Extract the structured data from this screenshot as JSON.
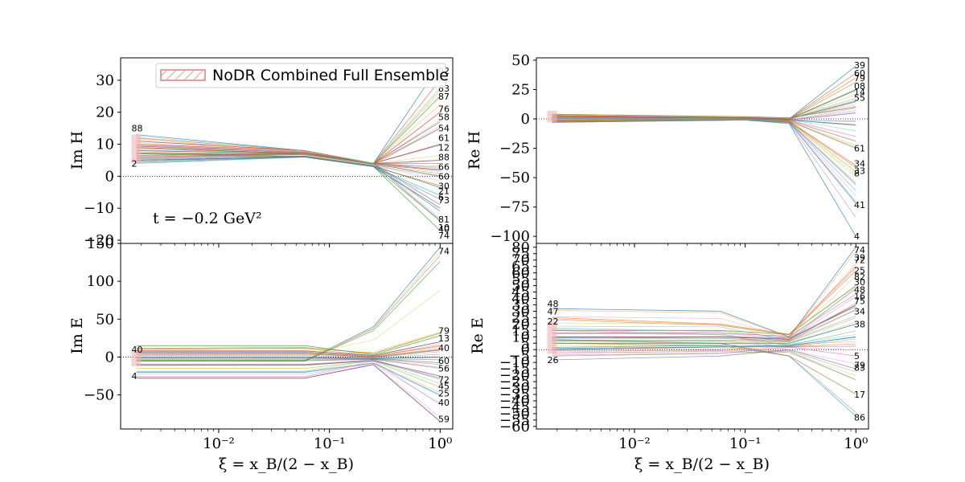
{
  "figure": {
    "legend_label": "NoDR Combined Full Ensemble",
    "annotation": "t = −0.2 GeV²",
    "xlabel": "ξ = x_B/(2 − x_B)",
    "colors": {
      "axes": "#000000",
      "legend_edge": "#e39c9c",
      "band": "#f0b3b3",
      "palette": [
        "#1f77b4",
        "#ff7f0e",
        "#2ca02c",
        "#d62728",
        "#9467bd",
        "#8c564b",
        "#e377c2",
        "#7f7f7f",
        "#bcbd22",
        "#17becf"
      ]
    }
  },
  "chart_data": [
    {
      "type": "line",
      "panel": "top-left",
      "ylabel": "Im H",
      "xscale": "log",
      "xlim": [
        0.0013,
        1.3
      ],
      "ylim": [
        -21,
        37
      ],
      "yticks": [
        -20,
        -10,
        0,
        10,
        20,
        30
      ],
      "xticks": [
        0.01,
        0.1,
        1
      ],
      "xticklabels": [
        "10⁻²",
        "10⁻¹",
        "10⁰"
      ],
      "show_xticklabels": false,
      "x": [
        0.0018,
        0.06,
        0.25,
        1.0
      ],
      "n_replicas": 100,
      "band": {
        "x0": 0.0018,
        "low": 4,
        "high": 13
      },
      "baseline": 0,
      "series": [
        {
          "values": [
            13,
            8,
            4,
            35
          ]
        },
        {
          "values": [
            12,
            8,
            4,
            30
          ]
        },
        {
          "values": [
            11,
            8,
            4,
            25
          ]
        },
        {
          "values": [
            10,
            8,
            4,
            20
          ]
        },
        {
          "values": [
            9,
            7,
            4,
            15
          ]
        },
        {
          "values": [
            8,
            7,
            4,
            10
          ]
        },
        {
          "values": [
            7,
            7,
            4,
            5
          ]
        },
        {
          "values": [
            6,
            7,
            4,
            0
          ]
        },
        {
          "values": [
            5,
            6,
            3,
            -3
          ]
        },
        {
          "values": [
            4,
            6,
            3,
            -6
          ]
        },
        {
          "values": [
            5,
            6,
            3,
            -10
          ]
        },
        {
          "values": [
            6,
            7,
            4,
            -14
          ]
        },
        {
          "values": [
            7,
            6,
            3,
            -17
          ]
        },
        {
          "values": [
            9,
            7,
            4,
            2
          ]
        },
        {
          "values": [
            11,
            8,
            4,
            4
          ]
        }
      ],
      "end_labels": [
        {
          "id": "92",
          "y": 33
        },
        {
          "id": "83",
          "y": 27.5
        },
        {
          "id": "87",
          "y": 25
        },
        {
          "id": "76",
          "y": 21
        },
        {
          "id": "58",
          "y": 18.5
        },
        {
          "id": "54",
          "y": 15
        },
        {
          "id": "61",
          "y": 12
        },
        {
          "id": "12",
          "y": 9
        },
        {
          "id": "88",
          "y": 6
        },
        {
          "id": "66",
          "y": 3
        },
        {
          "id": "60",
          "y": 0
        },
        {
          "id": "30",
          "y": -3
        },
        {
          "id": "21",
          "y": -4.5
        },
        {
          "id": "6",
          "y": -6.5
        },
        {
          "id": "73",
          "y": -7.5
        },
        {
          "id": "81",
          "y": -13.5
        },
        {
          "id": "10",
          "y": -16
        },
        {
          "id": "40",
          "y": -16.5
        },
        {
          "id": "74",
          "y": -18.5
        }
      ],
      "start_labels": [
        {
          "id": "88",
          "y": 15
        },
        {
          "id": "2",
          "y": 4
        }
      ]
    },
    {
      "type": "line",
      "panel": "top-right",
      "ylabel": "Re H",
      "xscale": "log",
      "xlim": [
        0.0013,
        1.3
      ],
      "ylim": [
        -106,
        52
      ],
      "yticks": [
        -100,
        -75,
        -50,
        -25,
        0,
        25,
        50
      ],
      "xticks": [
        0.01,
        0.1,
        1
      ],
      "xticklabels": [
        "10⁻²",
        "10⁻¹",
        "10⁰"
      ],
      "show_xticklabels": false,
      "x": [
        0.0018,
        0.1,
        0.25,
        1.0
      ],
      "n_replicas": 100,
      "band": {
        "x0": 0.0018,
        "low": -3,
        "high": 7
      },
      "baseline": 0,
      "series": [
        {
          "values": [
            3,
            1,
            0,
            45
          ]
        },
        {
          "values": [
            3,
            1,
            0,
            35
          ]
        },
        {
          "values": [
            2,
            1,
            0,
            25
          ]
        },
        {
          "values": [
            2,
            1,
            0,
            15
          ]
        },
        {
          "values": [
            1,
            1,
            -1,
            5
          ]
        },
        {
          "values": [
            0,
            0,
            -1,
            -5
          ]
        },
        {
          "values": [
            -1,
            0,
            -1,
            -15
          ]
        },
        {
          "values": [
            -2,
            -1,
            -2,
            -25
          ]
        },
        {
          "values": [
            -2,
            -1,
            -2,
            -45
          ]
        },
        {
          "values": [
            -3,
            -1,
            -3,
            -72
          ]
        },
        {
          "values": [
            -2,
            -1,
            -4,
            -100
          ]
        },
        {
          "values": [
            4,
            2,
            1,
            10
          ]
        }
      ],
      "end_labels": [
        {
          "id": "39",
          "y": 46
        },
        {
          "id": "60",
          "y": 39
        },
        {
          "id": "79",
          "y": 35
        },
        {
          "id": "08",
          "y": 28
        },
        {
          "id": "14",
          "y": 23
        },
        {
          "id": "55",
          "y": 18
        },
        {
          "id": "61",
          "y": -25
        },
        {
          "id": "34",
          "y": -38
        },
        {
          "id": "33",
          "y": -44
        },
        {
          "id": "8",
          "y": -46
        },
        {
          "id": "41",
          "y": -73
        },
        {
          "id": "4",
          "y": -100
        }
      ],
      "start_labels": []
    },
    {
      "type": "line",
      "panel": "bottom-left",
      "ylabel": "Im E",
      "xscale": "log",
      "xlim": [
        0.0013,
        1.3
      ],
      "ylim": [
        -95,
        150
      ],
      "yticks": [
        -50,
        0,
        50,
        100,
        150
      ],
      "xticks": [
        0.01,
        0.1,
        1
      ],
      "xticklabels": [
        "10⁻²",
        "10⁻¹",
        "10⁰"
      ],
      "show_xticklabels": true,
      "x": [
        0.0018,
        0.06,
        0.25,
        1.0
      ],
      "n_replicas": 100,
      "band": {
        "x0": 0.0018,
        "low": -12,
        "high": 8
      },
      "baseline": 0,
      "series": [
        {
          "values": [
            -5,
            -5,
            40,
            145
          ]
        },
        {
          "values": [
            10,
            12,
            5,
            32
          ]
        },
        {
          "values": [
            15,
            15,
            3,
            28
          ]
        },
        {
          "values": [
            8,
            8,
            2,
            20
          ]
        },
        {
          "values": [
            5,
            5,
            0,
            10
          ]
        },
        {
          "values": [
            0,
            0,
            -2,
            0
          ]
        },
        {
          "values": [
            -5,
            -5,
            -3,
            -15
          ]
        },
        {
          "values": [
            -10,
            -10,
            -5,
            -25
          ]
        },
        {
          "values": [
            -15,
            -15,
            -5,
            -40
          ]
        },
        {
          "values": [
            -20,
            -20,
            -8,
            -50
          ]
        },
        {
          "values": [
            -28,
            -28,
            -10,
            -85
          ]
        }
      ],
      "end_labels": [
        {
          "id": "74",
          "y": 140
        },
        {
          "id": "79",
          "y": 35
        },
        {
          "id": "13",
          "y": 25
        },
        {
          "id": "40",
          "y": 12
        },
        {
          "id": "60",
          "y": -5
        },
        {
          "id": "56",
          "y": -15
        },
        {
          "id": "72",
          "y": -30
        },
        {
          "id": "45",
          "y": -38
        },
        {
          "id": "25",
          "y": -48
        },
        {
          "id": "40",
          "y": -60
        },
        {
          "id": "59",
          "y": -82
        }
      ],
      "start_labels": [
        {
          "id": "40",
          "y": 10
        },
        {
          "id": "4",
          "y": -25
        }
      ]
    },
    {
      "type": "line",
      "panel": "bottom-right",
      "ylabel": "Re E",
      "xscale": "log",
      "xlim": [
        0.0013,
        1.3
      ],
      "ylim": [
        -62,
        83
      ],
      "yticks": [
        -60,
        -55,
        -50,
        -45,
        -40,
        -35,
        -30,
        -25,
        -20,
        -15,
        -10,
        -5,
        0,
        5,
        10,
        15,
        20,
        25,
        30,
        35,
        40,
        45,
        50,
        55,
        60,
        65,
        70,
        75,
        80
      ],
      "xticks": [
        0.01,
        0.1,
        1
      ],
      "xticklabels": [
        "10⁻²",
        "10⁻¹",
        "10⁰"
      ],
      "show_xticklabels": true,
      "x": [
        0.0018,
        0.06,
        0.25,
        1.0
      ],
      "n_replicas": 100,
      "band": {
        "x0": 0.0018,
        "low": -3,
        "high": 22
      },
      "baseline": 0,
      "series": [
        {
          "values": [
            32,
            30,
            10,
            80
          ]
        },
        {
          "values": [
            25,
            20,
            12,
            65
          ]
        },
        {
          "values": [
            15,
            15,
            12,
            50
          ]
        },
        {
          "values": [
            10,
            10,
            8,
            35
          ]
        },
        {
          "values": [
            5,
            5,
            5,
            20
          ]
        },
        {
          "values": [
            0,
            2,
            3,
            10
          ]
        },
        {
          "values": [
            -5,
            -3,
            2,
            -5
          ]
        },
        {
          "values": [
            -8,
            -5,
            0,
            -15
          ]
        },
        {
          "values": [
            5,
            3,
            -5,
            -35
          ]
        },
        {
          "values": [
            8,
            5,
            -5,
            -52
          ]
        }
      ],
      "end_labels": [
        {
          "id": "74",
          "y": 78
        },
        {
          "id": "39",
          "y": 72
        },
        {
          "id": "72",
          "y": 70
        },
        {
          "id": "25",
          "y": 62
        },
        {
          "id": "82",
          "y": 57
        },
        {
          "id": "30",
          "y": 53
        },
        {
          "id": "48",
          "y": 47
        },
        {
          "id": "16",
          "y": 42
        },
        {
          "id": "75",
          "y": 38
        },
        {
          "id": "34",
          "y": 30
        },
        {
          "id": "38",
          "y": 20
        },
        {
          "id": "5",
          "y": -5
        },
        {
          "id": "79",
          "y": -12
        },
        {
          "id": "83",
          "y": -14
        },
        {
          "id": "17",
          "y": -35
        },
        {
          "id": "86",
          "y": -53
        }
      ],
      "start_labels": [
        {
          "id": "48",
          "y": 36
        },
        {
          "id": "47",
          "y": 30
        },
        {
          "id": "22",
          "y": 22
        },
        {
          "id": "26",
          "y": -8
        }
      ]
    }
  ]
}
